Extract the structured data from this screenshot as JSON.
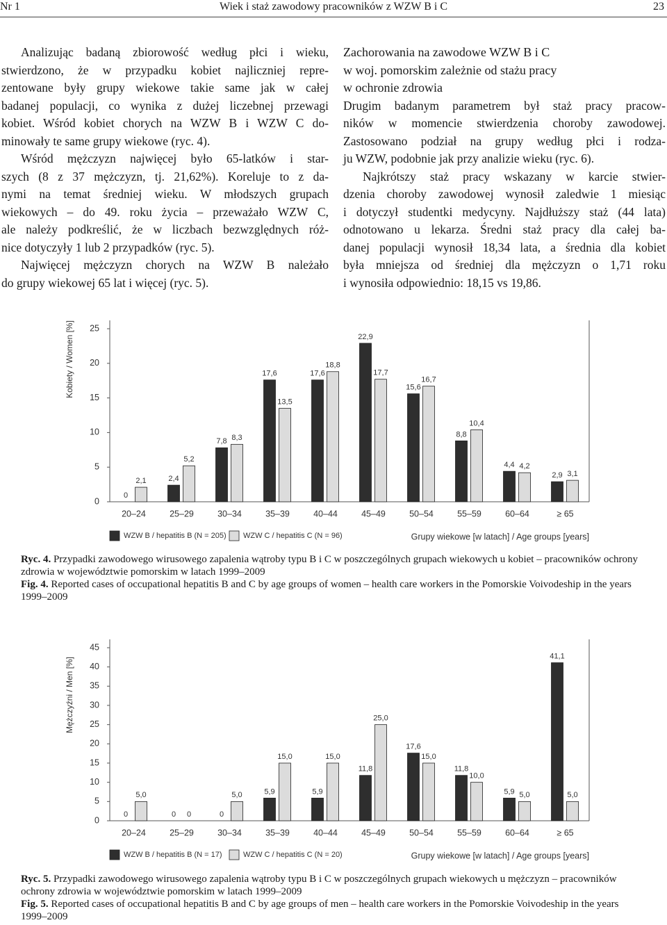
{
  "header": {
    "issue": "Nr 1",
    "title": "Wiek i staż zawodowy pracowników z WZW B i C",
    "page": "23"
  },
  "left_column": {
    "paragraphs": [
      [
        "Analizując badaną zbiorowość według płci i wieku,",
        "stwierdzono, że w przypadku kobiet najliczniej repre-",
        "zentowane były grupy wiekowe takie same jak w całej",
        "badanej populacji, co wynika z dużej liczebnej przewagi",
        "kobiet. Wśród kobiet chorych na WZW B i WZW C do-",
        "minowały te same grupy wiekowe (ryc. 4)."
      ],
      [
        "Wśród mężczyzn najwięcej było 65-latków i star-",
        "szych (8 z 37 mężczyzn, tj. 21,62%). Koreluje to z da-",
        "nymi na temat średniej wieku. W młodszych grupach",
        "wiekowych – do 49. roku życia – przeważało WZW C,",
        "ale należy podkreślić, że w liczbach bezwzględnych róż-",
        "nice dotyczyły 1 lub 2 przypadków (ryc. 5)."
      ],
      [
        "Najwięcej mężczyzn chorych na WZW B należało",
        "do grupy wiekowej 65 lat i więcej (ryc. 5)."
      ]
    ]
  },
  "right_column": {
    "heading": [
      "Zachorowania na zawodowe WZW B i C",
      "w woj. pomorskim zależnie od stażu pracy",
      "w ochronie zdrowia"
    ],
    "paragraphs": [
      [
        "Drugim badanym parametrem był staż pracy pracow-",
        "ników w momencie stwierdzenia choroby zawodowej.",
        "Zastosowano podział na grupy według płci i rodza-",
        "ju WZW, podobnie jak przy analizie wieku (ryc. 6)."
      ],
      [
        "Najkrótszy staż pracy wskazany w karcie stwier-",
        "dzenia choroby zawodowej wynosił zaledwie 1 miesiąc",
        "i dotyczył studentki medycyny. Najdłuższy staż (44 lata)",
        "odnotowano u lekarza. Średni staż pracy dla całej ba-",
        "danej populacji wynosił 18,34 lata, a średnia dla kobiet",
        "była mniejsza od średniej dla mężczyzn o 1,71 roku",
        "i wynosiła odpowiednio: 18,15 vs 19,86."
      ]
    ]
  },
  "chart_data": [
    {
      "type": "bar",
      "y_label": "Kobiety / Women [%]",
      "x_label": "Grupy wiekowe [w latach] / Age groups [years]",
      "categories": [
        "20–24",
        "25–29",
        "30–34",
        "35–39",
        "40–44",
        "45–49",
        "50–54",
        "55–59",
        "60–64",
        "≥ 65"
      ],
      "series": [
        {
          "name": "WZW B / hepatitis B (N = 205)",
          "color": "#2e2e2e",
          "values": [
            0,
            2.4,
            7.8,
            17.6,
            17.6,
            22.9,
            15.6,
            8.8,
            4.4,
            2.9
          ],
          "value_labels": [
            "0",
            "2,4",
            "7,8",
            "17,6",
            "17,6",
            "22,9",
            "15,6",
            "8,8",
            "4,4",
            "2,9"
          ]
        },
        {
          "name": "WZW C / hepatitis C (N = 96)",
          "color": "#dcdcdc",
          "values": [
            2.1,
            5.2,
            8.3,
            13.5,
            18.8,
            17.7,
            16.7,
            10.4,
            4.2,
            3.1
          ],
          "value_labels": [
            "2,1",
            "5,2",
            "8,3",
            "13,5",
            "18,8",
            "17,7",
            "16,7",
            "10,4",
            "4,2",
            "3,1"
          ]
        }
      ],
      "ylim": [
        0,
        25
      ],
      "yticks": [
        0,
        5,
        10,
        15,
        20,
        25
      ],
      "grid": false
    },
    {
      "type": "bar",
      "y_label": "Mężczyźni / Men [%]",
      "x_label": "Grupy wiekowe [w latach] / Age groups [years]",
      "categories": [
        "20–24",
        "25–29",
        "30–34",
        "35–39",
        "40–44",
        "45–49",
        "50–54",
        "55–59",
        "60–64",
        "≥ 65"
      ],
      "series": [
        {
          "name": "WZW B / hepatitis B (N = 17)",
          "color": "#2e2e2e",
          "values": [
            0,
            0,
            0,
            5.9,
            5.9,
            11.8,
            17.6,
            11.8,
            5.9,
            41.1
          ],
          "value_labels": [
            "0",
            "0",
            "0",
            "5,9",
            "5,9",
            "11,8",
            "17,6",
            "11,8",
            "5,9",
            "41,1"
          ]
        },
        {
          "name": "WZW C / hepatitis C (N = 20)",
          "color": "#dcdcdc",
          "values": [
            5.0,
            0,
            5.0,
            15.0,
            15.0,
            25.0,
            15.0,
            10.0,
            5.0,
            5.0
          ],
          "value_labels": [
            "5,0",
            "0",
            "5,0",
            "15,0",
            "15,0",
            "25,0",
            "15,0",
            "10,0",
            "5,0",
            "5,0"
          ]
        }
      ],
      "ylim": [
        0,
        45
      ],
      "yticks": [
        0,
        5,
        10,
        15,
        20,
        25,
        30,
        35,
        40,
        45
      ],
      "grid": false
    }
  ],
  "captions": [
    {
      "pl_label": "Ryc. 4.",
      "pl_text": "Przypadki zawodowego wirusowego zapalenia wątroby typu B i C w poszczególnych grupach wiekowych u kobiet – pracowników ochrony zdrowia w województwie pomorskim w latach 1999–2009",
      "en_label": "Fig. 4.",
      "en_text": "Reported cases of occupational hepatitis B and C by age groups of women – health care workers in the Pomorskie Voivodeship in the years 1999–2009"
    },
    {
      "pl_label": "Ryc. 5.",
      "pl_text": "Przypadki zawodowego wirusowego zapalenia wątroby typu B i C w poszczególnych grupach wiekowych u mężczyzn – pracowników ochrony zdrowia w województwie pomorskim w latach 1999–2009",
      "en_label": "Fig. 5.",
      "en_text": "Reported cases of occupational hepatitis B and C by age groups of men – health care workers in the Pomorskie Voivodeship in the years 1999–2009"
    }
  ]
}
